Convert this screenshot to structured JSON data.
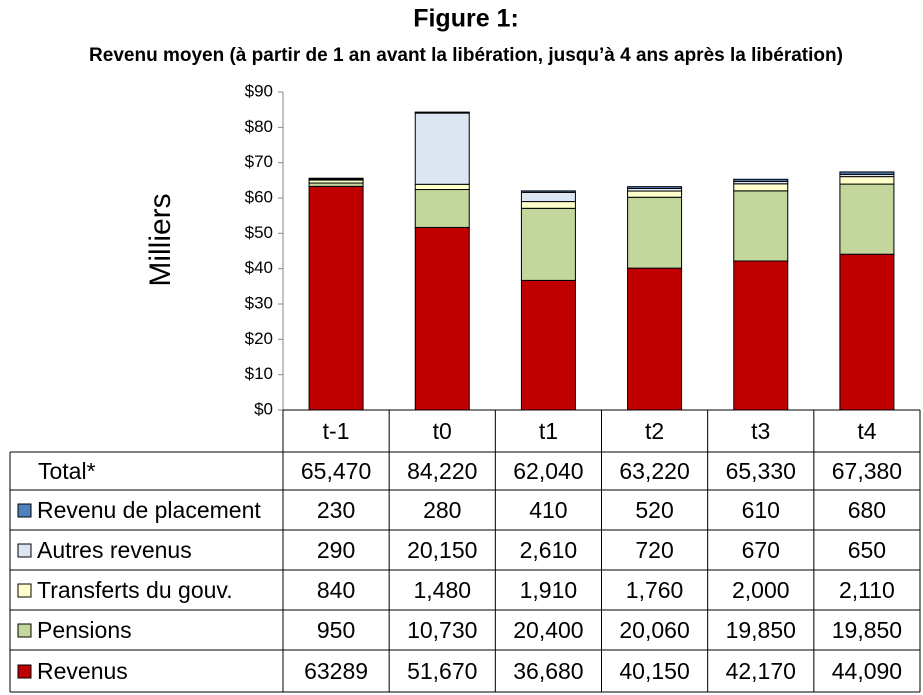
{
  "chart_data": {
    "type": "stacked_bar",
    "title": "Figure 1:",
    "subtitle": "Revenu moyen (à partir de 1 an avant la libération, jusqu’à 4 ans après la libération)",
    "y_label": "Milliers",
    "categories": [
      "t-1",
      "t0",
      "t1",
      "t2",
      "t3",
      "t4"
    ],
    "ylim": [
      0,
      90
    ],
    "yticks": [
      {
        "value": 0,
        "label": "$0"
      },
      {
        "value": 10,
        "label": "$10"
      },
      {
        "value": 20,
        "label": "$20"
      },
      {
        "value": 30,
        "label": "$30"
      },
      {
        "value": 40,
        "label": "$40"
      },
      {
        "value": 50,
        "label": "$50"
      },
      {
        "value": 60,
        "label": "$60"
      },
      {
        "value": 70,
        "label": "$70"
      },
      {
        "value": 80,
        "label": "$80"
      },
      {
        "value": 90,
        "label": "$90"
      }
    ],
    "grid": false,
    "total": {
      "name": "Total*",
      "values": [
        65.47,
        84.22,
        62.04,
        63.22,
        65.33,
        67.38
      ],
      "value_labels": [
        "65,470",
        "84,220",
        "62,040",
        "63,220",
        "65,330",
        "67,380"
      ]
    },
    "series": [
      {
        "name": "Revenu de placement",
        "color": "#4f81bd",
        "values": [
          0.23,
          0.28,
          0.41,
          0.52,
          0.61,
          0.68
        ],
        "value_labels": [
          "230",
          "280",
          "410",
          "520",
          "610",
          "680"
        ]
      },
      {
        "name": "Autres revenus",
        "color": "#dce6f2",
        "values": [
          0.29,
          20.15,
          2.61,
          0.72,
          0.67,
          0.65
        ],
        "value_labels": [
          "290",
          "20,150",
          "2,610",
          "720",
          "670",
          "650"
        ]
      },
      {
        "name": "Transferts du gouv.",
        "color": "#ffffcc",
        "values": [
          0.84,
          1.48,
          1.91,
          1.76,
          2.0,
          2.11
        ],
        "value_labels": [
          "840",
          "1,480",
          "1,910",
          "1,760",
          "2,000",
          "2,110"
        ]
      },
      {
        "name": "Pensions",
        "color": "#c3d69b",
        "values": [
          0.95,
          10.73,
          20.4,
          20.06,
          19.85,
          19.85
        ],
        "value_labels": [
          "950",
          "10,730",
          "20,400",
          "20,060",
          "19,850",
          "19,850"
        ]
      },
      {
        "name": "Revenus",
        "color": "#c00000",
        "values": [
          63.289,
          51.67,
          36.68,
          40.15,
          42.17,
          44.09
        ],
        "value_labels": [
          "63289",
          "51,670",
          "36,680",
          "40,150",
          "42,170",
          "44,090"
        ]
      }
    ]
  }
}
